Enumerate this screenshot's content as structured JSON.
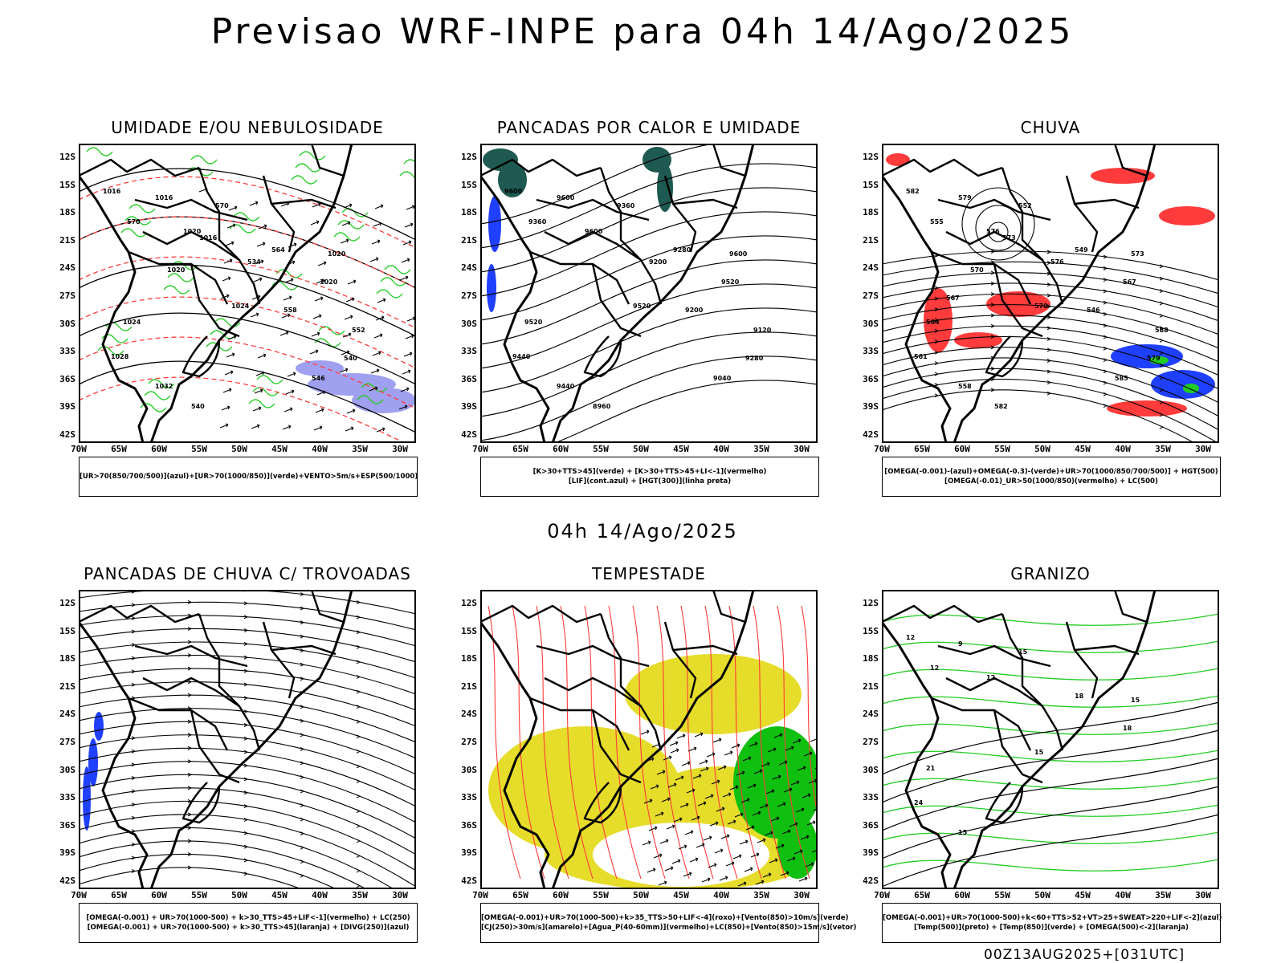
{
  "title": "Previsao WRF-INPE  para 04h 14/Ago/2025",
  "mid_time": "04h 14/Ago/2025",
  "footer": "00Z13AUG2025+[031UTC]",
  "lat_labels": [
    "12S",
    "15S",
    "18S",
    "21S",
    "24S",
    "27S",
    "30S",
    "33S",
    "36S",
    "39S",
    "42S"
  ],
  "lon_labels": [
    "70W",
    "65W",
    "60W",
    "55W",
    "50W",
    "45W",
    "40W",
    "35W",
    "30W"
  ],
  "colors": {
    "humidity_green": "#22cc22",
    "humidity_blue": "#a0a0f0",
    "thickness_red": "#ff3b3b",
    "convergence_blue": "#2040ff",
    "dark_teal": "#1e5a52",
    "storm_yellow": "#e6dc2a",
    "storm_green": "#10c010",
    "hatch_white": "#ffffff"
  },
  "panels": [
    {
      "title": "UMIDADE E/OU NEBULOSIDADE",
      "legend": [
        "[UR>70(850/700/500)](azul)+[UR>70(1000/850)](verde)+VENTO>5m/s+ESP(500/1000)"
      ],
      "contour_labels": [
        "1016",
        "1016",
        "1020",
        "1020",
        "1024",
        "1020",
        "1024",
        "1028",
        "1032",
        "570",
        "570",
        "564",
        "558",
        "552",
        "546",
        "540",
        "540",
        "534",
        "1016",
        "1020"
      ]
    },
    {
      "title": "PANCADAS POR CALOR E UMIDADE",
      "legend": [
        "[K>30+TTS>45](verde) + [K>30+TTS>45+LI<-1](vermelho)",
        "[LIF](cont.azul) + [HGT(300)](linha preta)"
      ],
      "contour_labels": [
        "9600",
        "9600",
        "9600",
        "9600",
        "9520",
        "9520",
        "9520",
        "9440",
        "9440",
        "9360",
        "9360",
        "9280",
        "9200",
        "9120",
        "9040",
        "8960",
        "9280",
        "9200"
      ]
    },
    {
      "title": "CHUVA",
      "legend": [
        "[OMEGA(-0.001)-(azul)+OMEGA(-0.3)-(verde)+UR>70(1000/850/700/500)] + HGT(500)",
        "[OMEGA(-0.01)_UR>50(1000/850)(vermelho) + LC(500)"
      ],
      "contour_labels": [
        "582",
        "579",
        "576",
        "573",
        "570",
        "567",
        "564",
        "561",
        "558",
        "555",
        "552",
        "549",
        "546",
        "588",
        "585",
        "582",
        "579",
        "576",
        "573",
        "570",
        "567"
      ]
    },
    {
      "title": "PANCADAS DE CHUVA C/ TROVOADAS",
      "legend": [
        "[OMEGA(-0.001) + UR>70(1000-500) + k>30_TTS>45+LIF<-1](vermelho) + LC(250)",
        "[OMEGA(-0.001) + UR>70(1000-500) + k>30_TTS>45](laranja) + [DIVG(250)](azul)"
      ],
      "contour_labels": []
    },
    {
      "title": "TEMPESTADE",
      "legend": [
        "[OMEGA(-0.001)+UR>70(1000-500)+k>35_TTS>50+LIF<-4](roxo)+[Vento(850)>10m/s](verde)",
        "[CJ(250)>30m/s](amarelo)+[Agua_P(40-60mm)](vermelho)+LC(850)+[Vento(850)>15m/s](vetor)"
      ],
      "contour_labels": []
    },
    {
      "title": "GRANIZO",
      "legend": [
        "[OMEGA(-0.001)+UR>70(1000-500)+k<60+TTS>52+VT>25+SWEAT>220+LIF<-2](azul)",
        "[Temp(500)](preto) + [Temp(850)](verde) + [OMEGA(500)<-2](laranja)"
      ],
      "contour_labels": [
        "12",
        "9",
        "12",
        "15",
        "15",
        "18",
        "21",
        "24",
        "15",
        "12",
        "15",
        "18"
      ]
    }
  ]
}
